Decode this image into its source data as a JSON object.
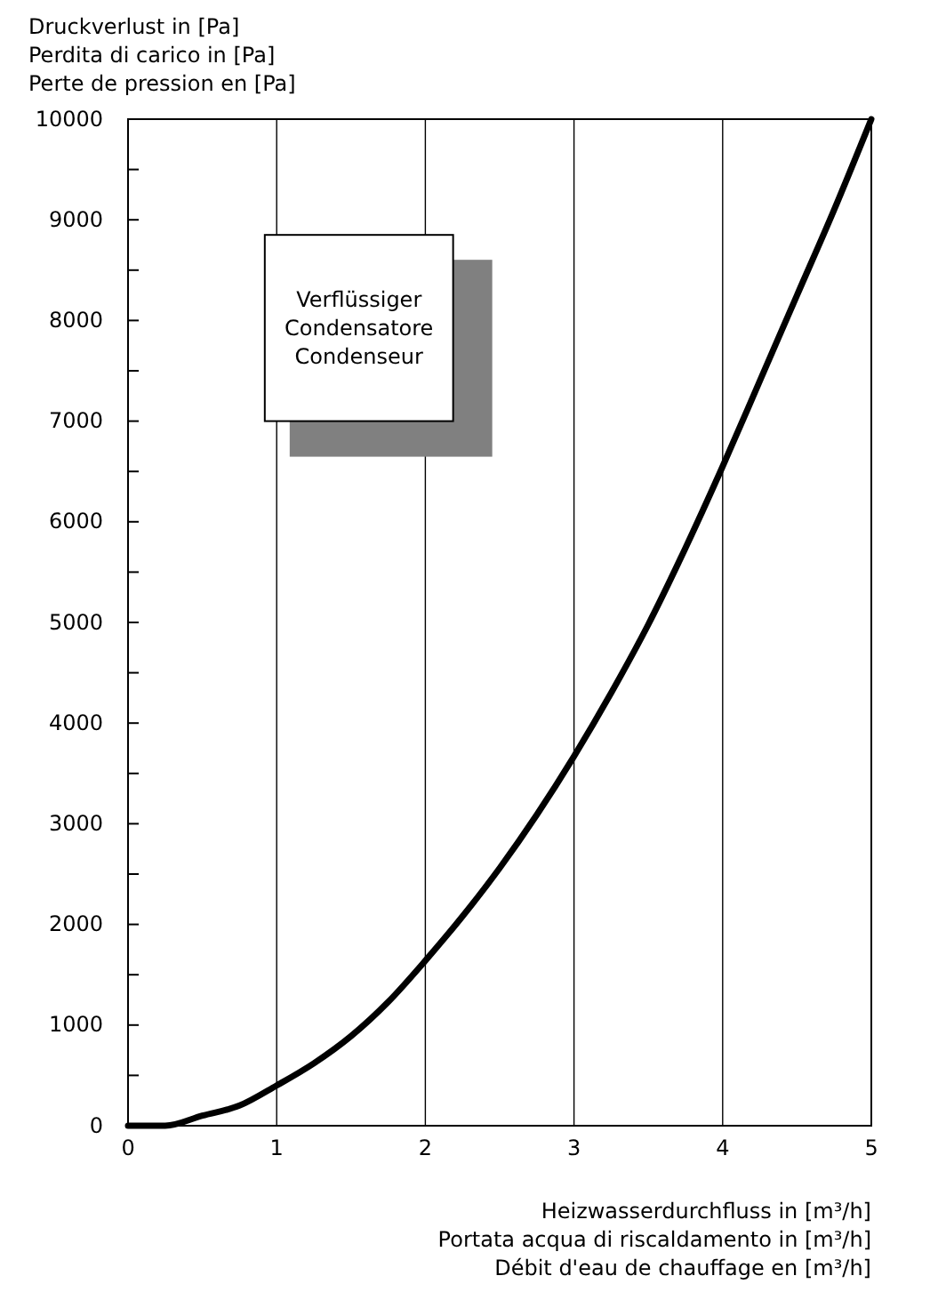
{
  "chart_data": {
    "type": "line",
    "ylabel": "Druckverlust in [Pa]\nPerdita di carico in [Pa]\nPerte de pression en [Pa]",
    "xlabel": "Heizwasserdurchfluss in [m³/h]\nPortata acqua di riscaldamento in [m³/h]\nDébit d'eau de chauffage en [m³/h]",
    "annotations": [
      "Verflüssiger\nCondensatore\nCondenseur"
    ],
    "x": [
      0,
      0.25,
      0.5,
      0.75,
      1,
      1.25,
      1.5,
      1.75,
      2,
      2.25,
      2.5,
      2.75,
      3,
      3.25,
      3.5,
      3.75,
      4,
      4.25,
      4.5,
      4.75,
      5
    ],
    "series": [
      {
        "color": "#000000",
        "values": [
          0,
          0,
          100,
          200,
          400,
          620,
          890,
          1230,
          1640,
          2080,
          2560,
          3090,
          3670,
          4300,
          4980,
          5740,
          6550,
          7400,
          8250,
          9100,
          10000
        ]
      }
    ],
    "xlim": [
      0,
      5
    ],
    "xticks": [
      0,
      1,
      2,
      3,
      4,
      5
    ],
    "ylim": [
      0,
      10000
    ],
    "yticks": [
      0,
      {
        "value": 500,
        "label": null
      },
      1000,
      {
        "value": 1500,
        "label": null
      },
      2000,
      {
        "value": 2500,
        "label": null
      },
      3000,
      {
        "value": 3500,
        "label": null
      },
      4000,
      {
        "value": 4500,
        "label": null
      },
      5000,
      {
        "value": 5500,
        "label": null
      },
      6000,
      {
        "value": 6500,
        "label": null
      },
      7000,
      {
        "value": 7500,
        "label": null
      },
      8000,
      {
        "value": 8500,
        "label": null
      },
      9000,
      {
        "value": 9500,
        "label": null
      },
      10000
    ],
    "grid": "x",
    "marker": "none",
    "line_style": "solid"
  }
}
